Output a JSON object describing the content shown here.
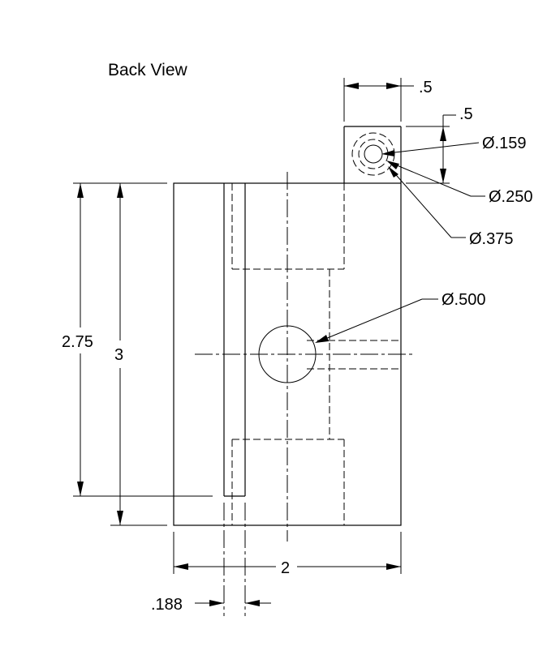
{
  "view_title": "Back View",
  "dimensions": {
    "top_width": ".5",
    "top_height": ".5",
    "hole_159": "Ø.159",
    "hole_250": "Ø.250",
    "hole_375": "Ø.375",
    "hole_500": "Ø.500",
    "height_275": "2.75",
    "height_3": "3",
    "width_2": "2",
    "slot_188": ".188"
  }
}
